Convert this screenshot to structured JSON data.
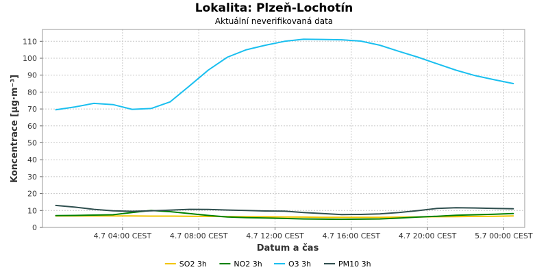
{
  "colors": {
    "background": "#ffffff",
    "plot_border": "#999999",
    "grid": "#c8c8c8"
  },
  "chart_data": {
    "type": "line",
    "title": "Lokalita: Plzeň-Lochotín",
    "subtitle": "Aktuální neverifikovaná data",
    "xlabel": "Datum a čas",
    "ylabel": "Koncentrace [µg·m⁻³]",
    "ylim": [
      0,
      117
    ],
    "yticks": [
      0,
      10,
      20,
      30,
      40,
      50,
      60,
      70,
      80,
      90,
      100,
      110
    ],
    "x_unit": "hour of 4.7 (24 = 5.7 00:00)",
    "xlim": [
      -0.2,
      25.1
    ],
    "xticks": [
      {
        "x": 4,
        "label": "4.7 04:00 CEST"
      },
      {
        "x": 8,
        "label": "4.7 08:00 CEST"
      },
      {
        "x": 12,
        "label": "4.7 12:00 CEST"
      },
      {
        "x": 16,
        "label": "4.7 16:00 CEST"
      },
      {
        "x": 20,
        "label": "4.7 20:00 CEST"
      },
      {
        "x": 24,
        "label": "5.7 00:00 CEST"
      }
    ],
    "grid": true,
    "legend_position": "bottom",
    "x": [
      0.5,
      1.5,
      2.5,
      3.5,
      4.5,
      5.5,
      6.5,
      7.5,
      8.5,
      9.5,
      10.5,
      11.5,
      12.5,
      13.5,
      14.5,
      15.5,
      16.5,
      17.5,
      18.5,
      19.5,
      20.5,
      21.5,
      22.5,
      23.5,
      24.5
    ],
    "series": [
      {
        "name": "SO2 3h",
        "color": "#f2c400",
        "values": [
          6.8,
          6.8,
          6.8,
          6.8,
          6.8,
          6.7,
          6.7,
          6.6,
          6.5,
          6.4,
          6.3,
          6.3,
          6.2,
          6.1,
          6.0,
          6.0,
          6.0,
          6.0,
          6.1,
          6.2,
          6.3,
          6.4,
          6.5,
          6.6,
          6.8
        ]
      },
      {
        "name": "NO2 3h",
        "color": "#008000",
        "values": [
          7.0,
          7.1,
          7.3,
          7.5,
          8.8,
          10.0,
          9.3,
          8.2,
          7.1,
          6.2,
          5.8,
          5.6,
          5.3,
          5.0,
          4.9,
          4.8,
          4.9,
          5.0,
          5.5,
          6.1,
          6.6,
          7.2,
          7.5,
          7.8,
          8.2
        ]
      },
      {
        "name": "O3 3h",
        "color": "#1abfef",
        "values": [
          69.5,
          71.2,
          73.3,
          72.6,
          69.8,
          70.3,
          74.2,
          83.5,
          93.0,
          100.6,
          105.0,
          107.7,
          110.0,
          111.2,
          111.1,
          110.9,
          110.1,
          107.7,
          104.1,
          100.6,
          96.7,
          92.9,
          89.7,
          87.3,
          85.0
        ]
      },
      {
        "name": "PM10 3h",
        "color": "#2f4f4f",
        "values": [
          13.0,
          12.0,
          10.7,
          9.8,
          9.5,
          9.8,
          10.2,
          10.7,
          10.6,
          10.3,
          10.0,
          9.7,
          9.6,
          8.8,
          8.2,
          7.6,
          7.7,
          8.0,
          8.8,
          9.9,
          11.2,
          11.6,
          11.5,
          11.2,
          11.0
        ]
      }
    ]
  }
}
